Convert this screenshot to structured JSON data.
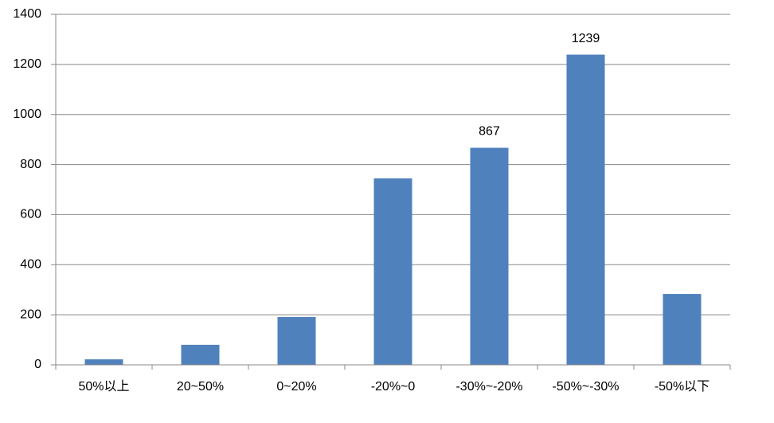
{
  "chart_data": {
    "type": "bar",
    "categories": [
      "50%以上",
      "20~50%",
      "0~20%",
      "-20%~0",
      "-30%~-20%",
      "-50%~-30%",
      "-50%以下"
    ],
    "values": [
      22,
      80,
      191,
      745,
      867,
      1239,
      283
    ],
    "value_labels": [
      null,
      null,
      null,
      null,
      "867",
      "1239",
      null
    ],
    "color": "#4f81bd",
    "ylim": [
      0,
      1400
    ],
    "yticks": [
      0,
      200,
      400,
      600,
      800,
      1000,
      1200,
      1400
    ],
    "grid": true
  }
}
